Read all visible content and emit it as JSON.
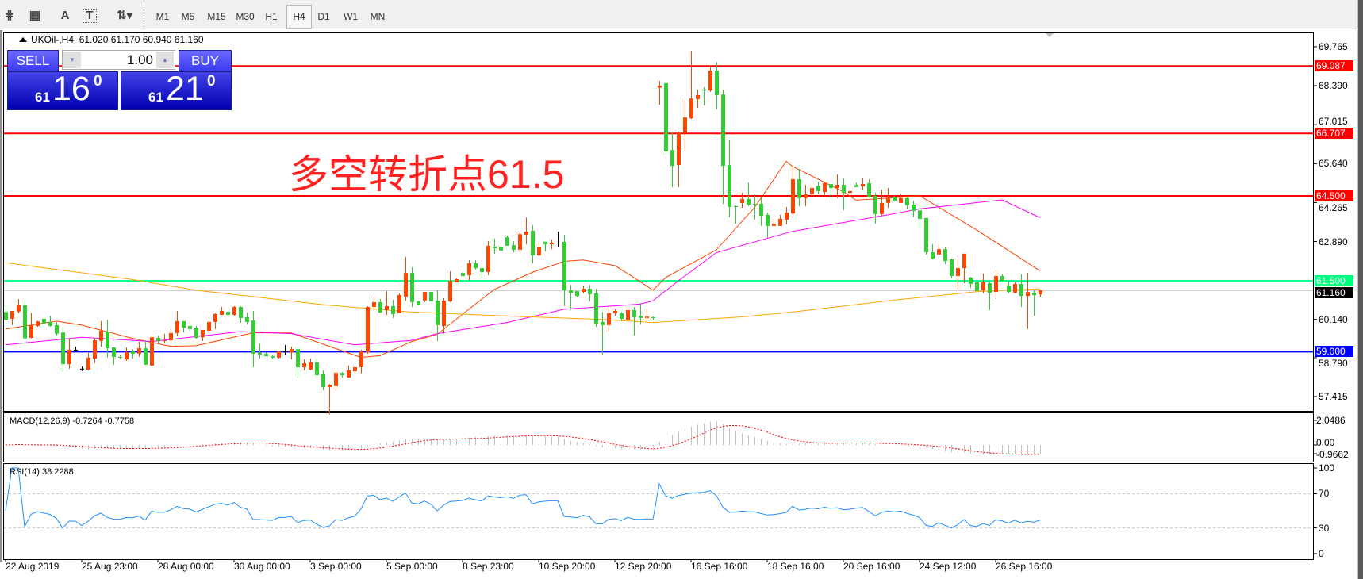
{
  "toolbar": {
    "tools": [
      {
        "icon": "fibonacci-expansion-icon",
        "glyph": "⋕"
      },
      {
        "icon": "fibonacci-fan-icon",
        "glyph": "▦"
      },
      {
        "icon": "text-label-icon",
        "glyph": "A"
      },
      {
        "icon": "text-box-icon",
        "glyph": "T"
      },
      {
        "icon": "arrows-dropdown-icon",
        "glyph": "⇅▾"
      }
    ],
    "timeframes": [
      "M1",
      "M5",
      "M15",
      "M30",
      "H1",
      "H4",
      "D1",
      "W1",
      "MN"
    ],
    "active_timeframe": "H4"
  },
  "chart": {
    "symbol": "UKOil-,H4",
    "ohlc": "61.020 61.170 60.940 61.160"
  },
  "trade_panel": {
    "sell_label": "SELL",
    "buy_label": "BUY",
    "lot": "1.00",
    "sell_price": {
      "prefix": "61",
      "main": "16",
      "sup": "0"
    },
    "buy_price": {
      "prefix": "61",
      "main": "21",
      "sup": "0"
    }
  },
  "annotation": "多空转折点61.5",
  "chart_data": {
    "type": "candlestick",
    "colors": {
      "up": "#ff4500",
      "down": "#32cd32",
      "doji": "#000000"
    },
    "candles": [
      [
        60.4,
        60.64,
        60.1,
        60.12
      ],
      [
        60.16,
        60.44,
        59.94,
        60.44
      ],
      [
        60.42,
        60.86,
        60.36,
        60.66
      ],
      [
        60.64,
        60.83,
        59.43,
        59.47
      ],
      [
        59.49,
        60.37,
        59.47,
        59.94
      ],
      [
        59.91,
        60.09,
        59.88,
        60.07
      ],
      [
        60.16,
        60.22,
        59.86,
        60.0
      ],
      [
        60.05,
        60.27,
        59.88,
        59.91
      ],
      [
        59.94,
        60.05,
        59.58,
        59.64
      ],
      [
        59.68,
        59.88,
        58.28,
        58.56
      ],
      [
        58.56,
        59.46,
        58.4,
        59.07
      ],
      [
        59.07,
        59.18,
        59.0,
        59.07
      ],
      [
        58.4,
        58.48,
        58.32,
        58.4
      ],
      [
        58.37,
        58.96,
        58.35,
        58.79
      ],
      [
        58.76,
        59.49,
        58.59,
        59.4
      ],
      [
        59.38,
        60.08,
        59.18,
        59.74
      ],
      [
        59.71,
        60.13,
        58.79,
        59.12
      ],
      [
        59.15,
        59.15,
        58.54,
        58.82
      ],
      [
        58.82,
        58.87,
        58.73,
        58.79
      ],
      [
        58.73,
        59.15,
        58.68,
        58.98
      ],
      [
        59.01,
        59.09,
        58.76,
        58.93
      ],
      [
        58.93,
        59.35,
        58.82,
        59.12
      ],
      [
        59.12,
        59.4,
        58.54,
        58.54
      ],
      [
        58.51,
        59.54,
        58.48,
        59.51
      ],
      [
        59.49,
        59.57,
        59.29,
        59.38
      ],
      [
        59.38,
        59.63,
        59.32,
        59.4
      ],
      [
        59.4,
        59.8,
        59.29,
        59.66
      ],
      [
        59.66,
        60.44,
        59.54,
        60.08
      ],
      [
        60.08,
        60.08,
        59.68,
        59.85
      ],
      [
        59.91,
        59.91,
        59.74,
        59.8
      ],
      [
        59.85,
        59.91,
        59.46,
        59.49
      ],
      [
        59.51,
        59.77,
        59.38,
        59.77
      ],
      [
        59.74,
        60.1,
        59.66,
        60.05
      ],
      [
        60.05,
        60.36,
        59.8,
        60.33
      ],
      [
        60.3,
        60.58,
        60.3,
        60.44
      ],
      [
        60.41,
        60.41,
        60.27,
        60.3
      ],
      [
        60.3,
        60.61,
        60.27,
        60.58
      ],
      [
        60.58,
        60.61,
        60.02,
        60.19
      ],
      [
        60.22,
        60.38,
        59.96,
        60.05
      ],
      [
        60.1,
        60.44,
        58.45,
        58.93
      ],
      [
        58.96,
        59.29,
        58.76,
        58.9
      ],
      [
        58.93,
        58.97,
        58.84,
        58.84
      ],
      [
        58.84,
        58.87,
        58.76,
        58.79
      ],
      [
        58.79,
        59.01,
        58.76,
        59.01
      ],
      [
        59.01,
        59.24,
        58.9,
        59.01
      ],
      [
        58.98,
        59.18,
        58.73,
        59.09
      ],
      [
        59.09,
        59.18,
        58.06,
        58.45
      ],
      [
        58.45,
        58.73,
        58.34,
        58.59
      ],
      [
        58.37,
        58.76,
        58.34,
        58.62
      ],
      [
        58.62,
        58.76,
        58.17,
        58.17
      ],
      [
        58.2,
        58.34,
        57.64,
        57.75
      ],
      [
        57.75,
        57.86,
        56.79,
        57.83
      ],
      [
        57.78,
        58.37,
        57.61,
        58.25
      ],
      [
        58.25,
        58.28,
        58.09,
        58.17
      ],
      [
        58.09,
        58.51,
        58.09,
        58.34
      ],
      [
        58.31,
        58.51,
        58.23,
        58.45
      ],
      [
        58.45,
        59.07,
        58.23,
        59.01
      ],
      [
        58.98,
        60.61,
        58.93,
        60.58
      ],
      [
        60.58,
        60.94,
        60.44,
        60.75
      ],
      [
        60.75,
        60.86,
        60.38,
        60.38
      ],
      [
        60.47,
        61.14,
        60.3,
        60.61
      ],
      [
        60.61,
        60.83,
        60.19,
        60.33
      ],
      [
        60.36,
        61.06,
        60.36,
        61.0
      ],
      [
        60.94,
        62.34,
        60.8,
        61.78
      ],
      [
        61.78,
        61.98,
        60.58,
        60.75
      ],
      [
        60.78,
        60.78,
        60.64,
        60.66
      ],
      [
        60.81,
        61.11,
        60.75,
        61.11
      ],
      [
        61.11,
        61.11,
        60.78,
        60.78
      ],
      [
        60.8,
        61.17,
        59.38,
        59.94
      ],
      [
        59.91,
        60.89,
        59.64,
        60.8
      ],
      [
        60.78,
        61.84,
        60.75,
        61.5
      ],
      [
        61.45,
        61.59,
        61.45,
        61.56
      ],
      [
        61.78,
        61.81,
        61.67,
        61.67
      ],
      [
        61.7,
        62.23,
        61.53,
        62.12
      ],
      [
        62.12,
        62.23,
        61.9,
        61.95
      ],
      [
        61.95,
        62.04,
        61.59,
        61.81
      ],
      [
        61.81,
        62.9,
        61.7,
        62.74
      ],
      [
        62.71,
        62.99,
        62.46,
        62.65
      ],
      [
        62.68,
        62.74,
        62.57,
        62.57
      ],
      [
        63.04,
        63.1,
        62.74,
        62.74
      ],
      [
        62.76,
        62.9,
        62.51,
        62.6
      ],
      [
        62.6,
        63.21,
        62.51,
        63.15
      ],
      [
        63.13,
        63.74,
        62.79,
        63.24
      ],
      [
        63.27,
        63.46,
        62.12,
        62.4
      ],
      [
        62.4,
        62.85,
        62.37,
        62.68
      ],
      [
        62.88,
        62.88,
        62.54,
        62.79
      ],
      [
        62.79,
        62.96,
        62.62,
        62.85
      ],
      [
        62.85,
        63.24,
        62.71,
        62.85
      ],
      [
        62.88,
        63.13,
        60.61,
        61.17
      ],
      [
        61.17,
        61.36,
        60.47,
        61.08
      ],
      [
        61.14,
        61.14,
        60.92,
        60.97
      ],
      [
        61.11,
        61.34,
        61.06,
        61.22
      ],
      [
        61.22,
        61.36,
        60.78,
        61.03
      ],
      [
        61.06,
        61.22,
        59.88,
        59.99
      ],
      [
        60.05,
        60.41,
        58.87,
        59.94
      ],
      [
        59.94,
        60.5,
        59.71,
        60.36
      ],
      [
        60.36,
        60.5,
        60.27,
        60.44
      ],
      [
        60.36,
        60.41,
        60.08,
        60.16
      ],
      [
        60.13,
        60.55,
        60.08,
        60.47
      ],
      [
        60.47,
        60.58,
        59.57,
        60.22
      ],
      [
        60.27,
        60.72,
        59.96,
        60.19
      ],
      [
        60.19,
        60.52,
        60.08,
        60.24
      ],
      [
        60.22,
        60.24,
        60.13,
        60.19
      ],
      [
        68.32,
        68.56,
        67.72,
        68.39
      ],
      [
        68.48,
        68.48,
        65.96,
        66.07
      ],
      [
        66.12,
        66.77,
        64.81,
        65.56
      ],
      [
        65.59,
        66.77,
        64.81,
        66.74
      ],
      [
        66.71,
        67.89,
        66.07,
        67.27
      ],
      [
        67.24,
        69.62,
        67.21,
        67.94
      ],
      [
        67.92,
        68.25,
        67.61,
        68.06
      ],
      [
        68.25,
        68.34,
        67.69,
        68.22
      ],
      [
        68.22,
        69.04,
        68.17,
        68.92
      ],
      [
        68.92,
        69.23,
        67.55,
        68.06
      ],
      [
        68.08,
        68.25,
        64.22,
        65.56
      ],
      [
        65.59,
        66.49,
        63.74,
        64.11
      ],
      [
        64.14,
        64.16,
        63.52,
        64.11
      ],
      [
        64.25,
        64.61,
        64.08,
        64.39
      ],
      [
        64.39,
        64.97,
        64.14,
        64.19
      ],
      [
        64.22,
        64.56,
        63.66,
        64.19
      ],
      [
        64.22,
        64.42,
        63.44,
        63.8
      ],
      [
        63.83,
        63.91,
        63.02,
        63.44
      ],
      [
        63.44,
        63.69,
        63.44,
        63.52
      ],
      [
        63.44,
        63.83,
        63.44,
        63.69
      ],
      [
        63.66,
        64.11,
        63.49,
        63.91
      ],
      [
        63.88,
        65.56,
        63.72,
        65.09
      ],
      [
        65.09,
        65.45,
        64.14,
        64.42
      ],
      [
        64.42,
        64.89,
        64.14,
        64.56
      ],
      [
        64.56,
        64.89,
        64.5,
        64.78
      ],
      [
        64.86,
        65.0,
        64.56,
        64.67
      ],
      [
        64.64,
        65.0,
        64.5,
        64.95
      ],
      [
        64.92,
        64.92,
        64.36,
        64.78
      ],
      [
        64.78,
        65.26,
        64.42,
        64.89
      ],
      [
        64.89,
        65.12,
        63.99,
        64.61
      ],
      [
        64.61,
        64.7,
        64.56,
        64.67
      ],
      [
        64.89,
        64.97,
        64.81,
        64.81
      ],
      [
        64.84,
        65.14,
        64.7,
        64.92
      ],
      [
        64.95,
        65.09,
        64.44,
        64.47
      ],
      [
        64.5,
        64.61,
        63.52,
        63.86
      ],
      [
        63.86,
        64.72,
        63.8,
        64.25
      ],
      [
        64.25,
        64.78,
        64.08,
        64.44
      ],
      [
        64.47,
        64.5,
        64.3,
        64.33
      ],
      [
        64.25,
        64.58,
        64.25,
        64.42
      ],
      [
        64.42,
        64.47,
        64.02,
        64.17
      ],
      [
        64.19,
        64.33,
        63.75,
        63.97
      ],
      [
        63.99,
        64.19,
        63.35,
        63.69
      ],
      [
        63.72,
        63.72,
        62.43,
        62.51
      ],
      [
        62.51,
        62.79,
        62.26,
        62.29
      ],
      [
        62.43,
        62.79,
        62.4,
        62.62
      ],
      [
        62.62,
        62.68,
        62.09,
        62.2
      ],
      [
        62.26,
        62.29,
        61.59,
        61.67
      ],
      [
        61.67,
        62.29,
        61.2,
        61.95
      ],
      [
        61.95,
        62.46,
        61.42,
        62.46
      ],
      [
        61.62,
        61.64,
        61.25,
        61.39
      ],
      [
        61.45,
        61.5,
        61.14,
        61.14
      ],
      [
        61.17,
        61.76,
        61.06,
        61.45
      ],
      [
        61.42,
        61.45,
        60.47,
        61.08
      ],
      [
        61.11,
        61.9,
        60.86,
        61.67
      ],
      [
        61.67,
        61.73,
        61.48,
        61.5
      ],
      [
        61.34,
        61.5,
        61.06,
        61.11
      ],
      [
        61.08,
        61.45,
        61.06,
        61.39
      ],
      [
        61.39,
        61.73,
        60.58,
        60.97
      ],
      [
        60.97,
        61.78,
        59.8,
        61.11
      ],
      [
        61.08,
        61.17,
        60.27,
        61.0
      ],
      [
        61.02,
        61.17,
        60.94,
        61.16
      ]
    ],
    "moving_averages": [
      {
        "color": "#ff4500",
        "points": [
          [
            0,
            59.8
          ],
          [
            8,
            60.08
          ],
          [
            12,
            59.94
          ],
          [
            20,
            59.47
          ],
          [
            26,
            59.19
          ],
          [
            30,
            59.21
          ],
          [
            39,
            59.67
          ],
          [
            45,
            59.66
          ],
          [
            51,
            59.19
          ],
          [
            56,
            58.8
          ],
          [
            59,
            58.86
          ],
          [
            64,
            59.36
          ],
          [
            68,
            59.61
          ],
          [
            73,
            60.5
          ],
          [
            77,
            61.2
          ],
          [
            83,
            61.8
          ],
          [
            88,
            62.19
          ],
          [
            91,
            62.24
          ],
          [
            96,
            62.04
          ],
          [
            99,
            61.62
          ],
          [
            102,
            61.17
          ],
          [
            104,
            61.62
          ],
          [
            112,
            62.6
          ],
          [
            118,
            64.09
          ],
          [
            123,
            65.72
          ],
          [
            124,
            65.54
          ],
          [
            132,
            64.65
          ],
          [
            134,
            64.35
          ],
          [
            139,
            64.42
          ],
          [
            144,
            64.51
          ],
          [
            153,
            63.3
          ],
          [
            163,
            61.85
          ]
        ]
      },
      {
        "color": "#ff00ff",
        "points": [
          [
            0,
            59.24
          ],
          [
            12,
            59.51
          ],
          [
            23,
            59.36
          ],
          [
            37,
            59.71
          ],
          [
            45,
            59.64
          ],
          [
            55,
            59.24
          ],
          [
            64,
            59.4
          ],
          [
            68,
            59.64
          ],
          [
            79,
            60.03
          ],
          [
            88,
            60.5
          ],
          [
            100,
            60.68
          ],
          [
            102,
            60.8
          ],
          [
            106,
            61.5
          ],
          [
            112,
            62.5
          ],
          [
            124,
            63.25
          ],
          [
            139,
            63.83
          ],
          [
            144,
            64.04
          ],
          [
            157,
            64.36
          ],
          [
            163,
            63.73
          ]
        ]
      },
      {
        "color": "#ffa500",
        "points": [
          [
            0,
            62.14
          ],
          [
            20,
            61.55
          ],
          [
            30,
            61.17
          ],
          [
            40,
            60.92
          ],
          [
            50,
            60.66
          ],
          [
            64,
            60.4
          ],
          [
            79,
            60.26
          ],
          [
            94,
            60.14
          ],
          [
            102,
            60.03
          ],
          [
            116,
            60.23
          ],
          [
            124,
            60.4
          ],
          [
            140,
            60.82
          ],
          [
            153,
            61.12
          ],
          [
            163,
            61.22
          ]
        ]
      }
    ],
    "levels": [
      {
        "value": 69.087,
        "label": "69.087",
        "color": "#ff0000"
      },
      {
        "value": 66.707,
        "label": "66.707",
        "color": "#ff0000"
      },
      {
        "value": 64.5,
        "label": "64.500",
        "color": "#ff0000"
      },
      {
        "value": 61.5,
        "label": "61.500",
        "color": "#00ff7f"
      },
      {
        "value": 59.0,
        "label": "59.000",
        "color": "#0000ff"
      }
    ],
    "current_price": {
      "value": 61.16,
      "label": "61.160"
    },
    "price_ticks": [
      {
        "value": 69.765,
        "label": "69.765"
      },
      {
        "value": 68.39,
        "label": "68.390"
      },
      {
        "value": 67.015,
        "label": "67.015"
      },
      {
        "value": 65.64,
        "label": "65.640"
      },
      {
        "value": 64.265,
        "label": "64.265"
      },
      {
        "value": 62.89,
        "label": "62.890"
      },
      {
        "value": 60.14,
        "label": "60.140"
      },
      {
        "value": 58.79,
        "label": "58.790"
      },
      {
        "value": 57.415,
        "label": "57.415"
      }
    ],
    "time_labels": [
      "22 Aug 2019",
      "25 Aug 23:00",
      "28 Aug 00:00",
      "30 Aug 00:00",
      "3 Sep 00:00",
      "5 Sep 00:00",
      "8 Sep 23:00",
      "10 Sep 20:00",
      "12 Sep 20:00",
      "16 Sep 16:00",
      "18 Sep 16:00",
      "20 Sep 16:00",
      "24 Sep 12:00",
      "26 Sep 16:00"
    ],
    "macd": {
      "label": "MACD(12,26,9) -0.7264 -0.7758",
      "histogram_color": "#c0c0c0",
      "signal_color": "#ff0000",
      "ticks": [
        {
          "value": 2.0486,
          "label": "2.0486"
        },
        {
          "value": 0.0,
          "label": "0.00"
        },
        {
          "value": -0.9662,
          "label": "-0.9662"
        }
      ]
    },
    "rsi": {
      "label": "RSI(14) 38.2288",
      "color": "#1e90ff",
      "levels": [
        70,
        30
      ],
      "ticks": [
        {
          "value": 100,
          "label": "100"
        },
        {
          "value": 70,
          "label": "70"
        },
        {
          "value": 30,
          "label": "30"
        },
        {
          "value": 0,
          "label": "0"
        }
      ]
    }
  }
}
